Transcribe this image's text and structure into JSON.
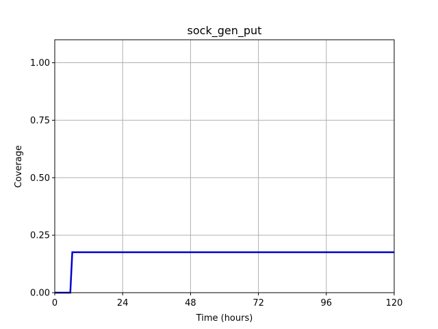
{
  "chart_data": {
    "type": "line",
    "title": "sock_gen_put",
    "xlabel": "Time (hours)",
    "ylabel": "Coverage",
    "xlim": [
      0,
      120
    ],
    "ylim": [
      0,
      1.1
    ],
    "xticks": [
      0,
      24,
      48,
      72,
      96,
      120
    ],
    "xtick_labels": [
      "0",
      "24",
      "48",
      "72",
      "96",
      "120"
    ],
    "yticks": [
      0,
      0.25,
      0.5,
      0.75,
      1.0
    ],
    "ytick_labels": [
      "0.00",
      "0.25",
      "0.50",
      "0.75",
      "1.00"
    ],
    "grid": true,
    "series": [
      {
        "color": "#0000cc",
        "x": [
          0,
          5.5,
          6.2,
          120
        ],
        "y": [
          0,
          0,
          0.176,
          0.176
        ]
      }
    ]
  }
}
